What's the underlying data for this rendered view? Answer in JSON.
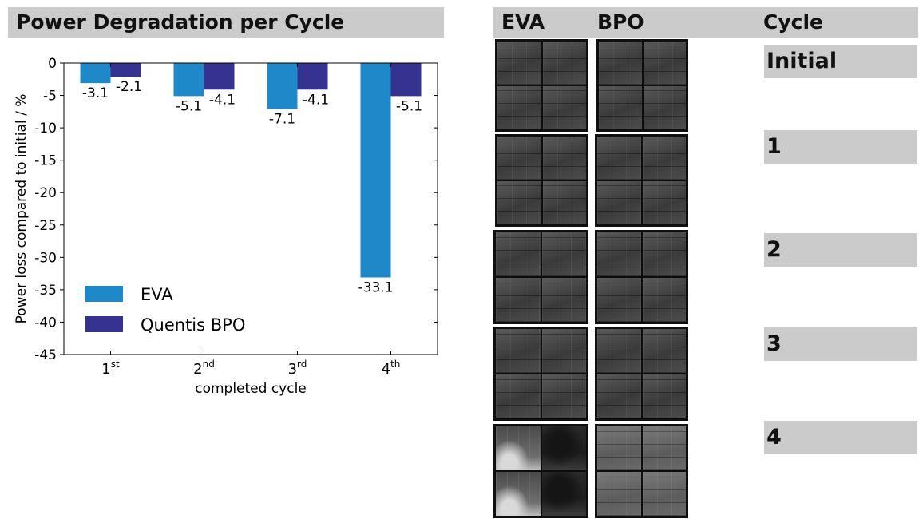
{
  "title": "Power Degradation per Cycle",
  "right_panel": {
    "headers": {
      "eva": "EVA",
      "bpo": "BPO",
      "cycle": "Cycle"
    },
    "cycles": [
      "Initial",
      "1",
      "2",
      "3",
      "4"
    ]
  },
  "colors": {
    "eva": "#1f88c8",
    "bpo": "#35338f",
    "header_bg": "#cbcbcb"
  },
  "chart_data": {
    "type": "bar",
    "categories": [
      {
        "main": "1",
        "sup": "st"
      },
      {
        "main": "2",
        "sup": "nd"
      },
      {
        "main": "3",
        "sup": "rd"
      },
      {
        "main": "4",
        "sup": "th"
      }
    ],
    "series": [
      {
        "name": "EVA",
        "values": [
          -3.1,
          -5.1,
          -7.1,
          -33.1
        ]
      },
      {
        "name": "Quentis BPO",
        "values": [
          -2.1,
          -4.1,
          -4.1,
          -5.1
        ]
      }
    ],
    "xlabel": "completed cycle",
    "ylabel": "Power loss compared to initial / %",
    "ylim": [
      -45,
      0
    ],
    "yticks": [
      0,
      -5,
      -10,
      -15,
      -20,
      -25,
      -30,
      -35,
      -40,
      -45
    ],
    "grid": false,
    "legend": "lower-left"
  }
}
